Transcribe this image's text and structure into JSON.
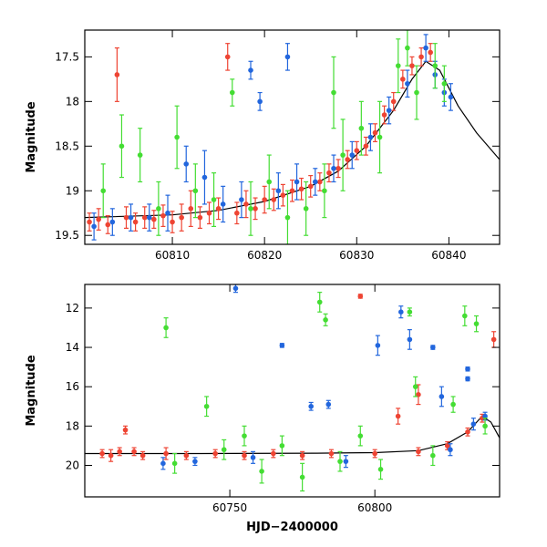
{
  "chart_data": [
    {
      "type": "scatter",
      "panel": "top",
      "ylabel": "Magnitude",
      "xlabel": "",
      "xlim": [
        60800.5,
        60845.5
      ],
      "ylim": [
        19.6,
        17.2
      ],
      "y_inverted": true,
      "xticks": [
        60810,
        60820,
        60830,
        60840
      ],
      "yticks": [
        17.5,
        18,
        18.5,
        19,
        19.5
      ],
      "ytick_labels": [
        "17.5",
        "18",
        "18.5",
        "19",
        "19.5"
      ],
      "grid": false,
      "legend": "none",
      "model_curve": {
        "color": "#000000",
        "x": [
          60800.5,
          60810,
          60815,
          60820,
          60825,
          60828,
          60831,
          60834,
          60836,
          60837.5,
          60839,
          60841,
          60843,
          60845.5
        ],
        "y": [
          19.3,
          19.27,
          19.22,
          19.12,
          18.95,
          18.78,
          18.5,
          18.1,
          17.75,
          17.55,
          17.65,
          18.05,
          18.35,
          18.65
        ]
      },
      "series": [
        {
          "color": "#ee4433",
          "points": [
            {
              "x": 60801,
              "y": 19.35,
              "e": 0.1
            },
            {
              "x": 60802,
              "y": 19.32,
              "e": 0.12
            },
            {
              "x": 60803,
              "y": 19.38,
              "e": 0.1
            },
            {
              "x": 60804,
              "y": 17.7,
              "e": 0.3
            },
            {
              "x": 60805,
              "y": 19.3,
              "e": 0.12
            },
            {
              "x": 60806,
              "y": 19.35,
              "e": 0.1
            },
            {
              "x": 60807,
              "y": 19.3,
              "e": 0.12
            },
            {
              "x": 60808,
              "y": 19.32,
              "e": 0.1
            },
            {
              "x": 60809,
              "y": 19.28,
              "e": 0.12
            },
            {
              "x": 60810,
              "y": 19.35,
              "e": 0.12
            },
            {
              "x": 60811,
              "y": 19.3,
              "e": 0.15
            },
            {
              "x": 60812,
              "y": 19.2,
              "e": 0.2
            },
            {
              "x": 60813,
              "y": 19.3,
              "e": 0.12
            },
            {
              "x": 60814,
              "y": 19.25,
              "e": 0.12
            },
            {
              "x": 60815,
              "y": 19.2,
              "e": 0.12
            },
            {
              "x": 60816,
              "y": 17.5,
              "e": 0.15
            },
            {
              "x": 60817,
              "y": 19.25,
              "e": 0.12
            },
            {
              "x": 60818,
              "y": 19.15,
              "e": 0.15
            },
            {
              "x": 60819,
              "y": 19.2,
              "e": 0.12
            },
            {
              "x": 60820,
              "y": 19.1,
              "e": 0.15
            },
            {
              "x": 60821,
              "y": 19.1,
              "e": 0.12
            },
            {
              "x": 60822,
              "y": 19.05,
              "e": 0.12
            },
            {
              "x": 60823,
              "y": 19.0,
              "e": 0.12
            },
            {
              "x": 60824,
              "y": 18.98,
              "e": 0.12
            },
            {
              "x": 60825,
              "y": 18.95,
              "e": 0.12
            },
            {
              "x": 60826,
              "y": 18.9,
              "e": 0.1
            },
            {
              "x": 60827,
              "y": 18.8,
              "e": 0.1
            },
            {
              "x": 60828,
              "y": 18.75,
              "e": 0.1
            },
            {
              "x": 60829,
              "y": 18.65,
              "e": 0.1
            },
            {
              "x": 60830,
              "y": 18.55,
              "e": 0.1
            },
            {
              "x": 60831,
              "y": 18.5,
              "e": 0.1
            },
            {
              "x": 60832,
              "y": 18.35,
              "e": 0.1
            },
            {
              "x": 60833,
              "y": 18.15,
              "e": 0.1
            },
            {
              "x": 60834,
              "y": 18.0,
              "e": 0.1
            },
            {
              "x": 60835,
              "y": 17.75,
              "e": 0.1
            },
            {
              "x": 60836,
              "y": 17.6,
              "e": 0.1
            },
            {
              "x": 60837,
              "y": 17.5,
              "e": 0.1
            },
            {
              "x": 60838,
              "y": 17.45,
              "e": 0.1
            }
          ]
        },
        {
          "color": "#2266dd",
          "points": [
            {
              "x": 60801.5,
              "y": 19.4,
              "e": 0.15
            },
            {
              "x": 60803.5,
              "y": 19.35,
              "e": 0.15
            },
            {
              "x": 60805.5,
              "y": 19.3,
              "e": 0.15
            },
            {
              "x": 60807.5,
              "y": 19.3,
              "e": 0.15
            },
            {
              "x": 60809.5,
              "y": 19.25,
              "e": 0.2
            },
            {
              "x": 60811.5,
              "y": 18.7,
              "e": 0.2
            },
            {
              "x": 60813.5,
              "y": 18.85,
              "e": 0.3
            },
            {
              "x": 60815.5,
              "y": 19.15,
              "e": 0.2
            },
            {
              "x": 60817.5,
              "y": 19.1,
              "e": 0.2
            },
            {
              "x": 60818.5,
              "y": 17.65,
              "e": 0.1
            },
            {
              "x": 60819.5,
              "y": 18.0,
              "e": 0.1
            },
            {
              "x": 60821.5,
              "y": 19.0,
              "e": 0.2
            },
            {
              "x": 60822.5,
              "y": 17.5,
              "e": 0.15
            },
            {
              "x": 60823.5,
              "y": 18.9,
              "e": 0.2
            },
            {
              "x": 60825.5,
              "y": 18.9,
              "e": 0.15
            },
            {
              "x": 60827.5,
              "y": 18.75,
              "e": 0.15
            },
            {
              "x": 60829.5,
              "y": 18.6,
              "e": 0.15
            },
            {
              "x": 60831.5,
              "y": 18.4,
              "e": 0.15
            },
            {
              "x": 60833.5,
              "y": 18.1,
              "e": 0.15
            },
            {
              "x": 60835.5,
              "y": 17.8,
              "e": 0.15
            },
            {
              "x": 60837.5,
              "y": 17.4,
              "e": 0.15
            },
            {
              "x": 60838.5,
              "y": 17.7,
              "e": 0.15
            },
            {
              "x": 60839.5,
              "y": 17.9,
              "e": 0.15
            },
            {
              "x": 60840.2,
              "y": 17.95,
              "e": 0.15
            }
          ]
        },
        {
          "color": "#44dd33",
          "points": [
            {
              "x": 60802.5,
              "y": 19.0,
              "e": 0.3
            },
            {
              "x": 60804.5,
              "y": 18.5,
              "e": 0.35
            },
            {
              "x": 60806.5,
              "y": 18.6,
              "e": 0.3
            },
            {
              "x": 60808.5,
              "y": 19.2,
              "e": 0.3
            },
            {
              "x": 60810.5,
              "y": 18.4,
              "e": 0.35
            },
            {
              "x": 60812.5,
              "y": 19.0,
              "e": 0.3
            },
            {
              "x": 60814.5,
              "y": 19.1,
              "e": 0.3
            },
            {
              "x": 60816.5,
              "y": 17.9,
              "e": 0.15
            },
            {
              "x": 60818.5,
              "y": 19.2,
              "e": 0.3
            },
            {
              "x": 60820.5,
              "y": 18.9,
              "e": 0.3
            },
            {
              "x": 60822.5,
              "y": 19.3,
              "e": 0.3
            },
            {
              "x": 60824.5,
              "y": 19.2,
              "e": 0.3
            },
            {
              "x": 60826.5,
              "y": 19.0,
              "e": 0.3
            },
            {
              "x": 60827.5,
              "y": 17.9,
              "e": 0.4
            },
            {
              "x": 60828.5,
              "y": 18.6,
              "e": 0.4
            },
            {
              "x": 60830.5,
              "y": 18.3,
              "e": 0.3
            },
            {
              "x": 60832.5,
              "y": 18.4,
              "e": 0.4
            },
            {
              "x": 60834.5,
              "y": 17.6,
              "e": 0.3
            },
            {
              "x": 60835.5,
              "y": 17.4,
              "e": 0.2
            },
            {
              "x": 60836.5,
              "y": 17.9,
              "e": 0.3
            },
            {
              "x": 60838.5,
              "y": 17.6,
              "e": 0.25
            },
            {
              "x": 60839.5,
              "y": 17.8,
              "e": 0.2
            }
          ]
        }
      ]
    },
    {
      "type": "scatter",
      "panel": "bottom",
      "ylabel": "Magnitude",
      "xlabel": "HJD−2400000",
      "xlim": [
        60700,
        60843
      ],
      "ylim": [
        21.6,
        10.8
      ],
      "y_inverted": true,
      "xticks": [
        60750,
        60800
      ],
      "yticks": [
        12,
        14,
        16,
        18,
        20
      ],
      "ytick_labels": [
        "12",
        "14",
        "16",
        "18",
        "20"
      ],
      "grid": false,
      "legend": "none",
      "model_curve": {
        "color": "#000000",
        "x": [
          60700,
          60740,
          60780,
          60800,
          60815,
          60825,
          60832,
          60837,
          60840,
          60843
        ],
        "y": [
          19.4,
          19.4,
          19.38,
          19.35,
          19.25,
          18.9,
          18.3,
          17.5,
          17.8,
          18.6
        ]
      },
      "series": [
        {
          "color": "#ee4433",
          "points": [
            {
              "x": 60706,
              "y": 19.4,
              "e": 0.2
            },
            {
              "x": 60709,
              "y": 19.5,
              "e": 0.3
            },
            {
              "x": 60712,
              "y": 19.3,
              "e": 0.2
            },
            {
              "x": 60714,
              "y": 18.2,
              "e": 0.2
            },
            {
              "x": 60717,
              "y": 19.3,
              "e": 0.2
            },
            {
              "x": 60720,
              "y": 19.5,
              "e": 0.2
            },
            {
              "x": 60728,
              "y": 19.4,
              "e": 0.3
            },
            {
              "x": 60735,
              "y": 19.5,
              "e": 0.2
            },
            {
              "x": 60745,
              "y": 19.4,
              "e": 0.2
            },
            {
              "x": 60755,
              "y": 19.5,
              "e": 0.2
            },
            {
              "x": 60765,
              "y": 19.4,
              "e": 0.2
            },
            {
              "x": 60775,
              "y": 19.5,
              "e": 0.2
            },
            {
              "x": 60785,
              "y": 19.4,
              "e": 0.2
            },
            {
              "x": 60795,
              "y": 11.4,
              "e": 0.1
            },
            {
              "x": 60800,
              "y": 19.4,
              "e": 0.2
            },
            {
              "x": 60808,
              "y": 17.5,
              "e": 0.4
            },
            {
              "x": 60815,
              "y": 16.4,
              "e": 0.5
            },
            {
              "x": 60815,
              "y": 19.3,
              "e": 0.2
            },
            {
              "x": 60825,
              "y": 19.0,
              "e": 0.2
            },
            {
              "x": 60832,
              "y": 18.3,
              "e": 0.2
            },
            {
              "x": 60837,
              "y": 17.6,
              "e": 0.2
            },
            {
              "x": 60841,
              "y": 13.6,
              "e": 0.4
            }
          ]
        },
        {
          "color": "#2266dd",
          "points": [
            {
              "x": 60727,
              "y": 19.9,
              "e": 0.3
            },
            {
              "x": 60738,
              "y": 19.8,
              "e": 0.2
            },
            {
              "x": 60752,
              "y": 11.0,
              "e": 0.2
            },
            {
              "x": 60758,
              "y": 19.6,
              "e": 0.3
            },
            {
              "x": 60768,
              "y": 13.9,
              "e": 0.1
            },
            {
              "x": 60778,
              "y": 17.0,
              "e": 0.2
            },
            {
              "x": 60784,
              "y": 16.9,
              "e": 0.2
            },
            {
              "x": 60790,
              "y": 19.8,
              "e": 0.3
            },
            {
              "x": 60801,
              "y": 13.9,
              "e": 0.5
            },
            {
              "x": 60809,
              "y": 12.2,
              "e": 0.3
            },
            {
              "x": 60812,
              "y": 13.6,
              "e": 0.5
            },
            {
              "x": 60820,
              "y": 14.0,
              "e": 0.1
            },
            {
              "x": 60823,
              "y": 16.5,
              "e": 0.5
            },
            {
              "x": 60826,
              "y": 19.2,
              "e": 0.3
            },
            {
              "x": 60832,
              "y": 15.1,
              "e": 0.1
            },
            {
              "x": 60832,
              "y": 15.6,
              "e": 0.1
            },
            {
              "x": 60834,
              "y": 17.9,
              "e": 0.3
            },
            {
              "x": 60838,
              "y": 17.5,
              "e": 0.2
            }
          ]
        },
        {
          "color": "#44dd33",
          "points": [
            {
              "x": 60728,
              "y": 13.0,
              "e": 0.5
            },
            {
              "x": 60731,
              "y": 19.9,
              "e": 0.5
            },
            {
              "x": 60742,
              "y": 17.0,
              "e": 0.5
            },
            {
              "x": 60748,
              "y": 19.2,
              "e": 0.5
            },
            {
              "x": 60755,
              "y": 18.5,
              "e": 0.5
            },
            {
              "x": 60761,
              "y": 20.3,
              "e": 0.6
            },
            {
              "x": 60768,
              "y": 19.0,
              "e": 0.5
            },
            {
              "x": 60775,
              "y": 20.6,
              "e": 0.7
            },
            {
              "x": 60781,
              "y": 11.7,
              "e": 0.5
            },
            {
              "x": 60783,
              "y": 12.6,
              "e": 0.3
            },
            {
              "x": 60788,
              "y": 19.8,
              "e": 0.5
            },
            {
              "x": 60795,
              "y": 18.5,
              "e": 0.5
            },
            {
              "x": 60802,
              "y": 20.2,
              "e": 0.5
            },
            {
              "x": 60812,
              "y": 12.2,
              "e": 0.2
            },
            {
              "x": 60814,
              "y": 16.0,
              "e": 0.5
            },
            {
              "x": 60820,
              "y": 19.5,
              "e": 0.5
            },
            {
              "x": 60827,
              "y": 16.9,
              "e": 0.4
            },
            {
              "x": 60831,
              "y": 12.4,
              "e": 0.5
            },
            {
              "x": 60835,
              "y": 12.8,
              "e": 0.4
            },
            {
              "x": 60838,
              "y": 18.0,
              "e": 0.4
            }
          ]
        }
      ]
    }
  ]
}
